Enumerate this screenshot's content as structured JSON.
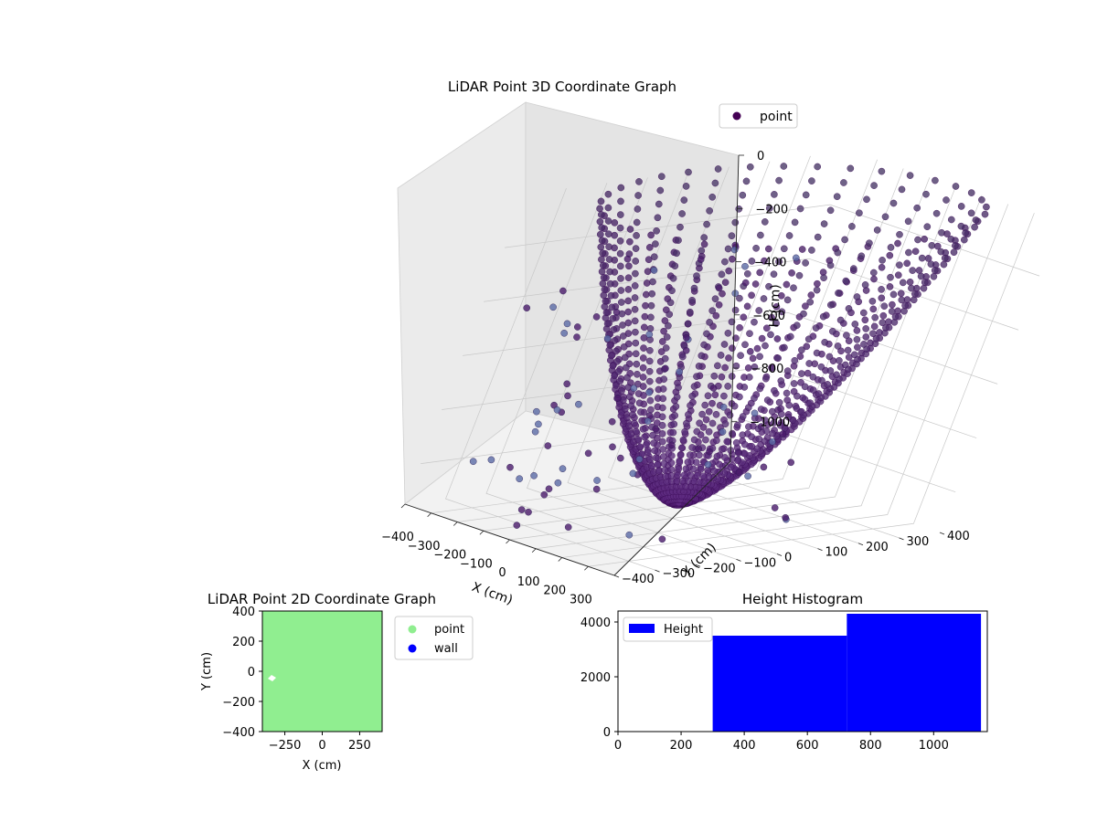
{
  "chart_data": [
    {
      "type": "scatter",
      "projection": "3d",
      "title": "LiDAR Point 3D Coordinate Graph",
      "xlabel": "X (cm)",
      "ylabel": "Y (cm)",
      "zlabel": "H (cm)",
      "xlim": [
        -400,
        400
      ],
      "ylim": [
        -400,
        400
      ],
      "zlim": [
        -1150,
        0
      ],
      "x_ticks": [
        "−400",
        "−300",
        "−200",
        "−100",
        "0",
        "100",
        "200",
        "300"
      ],
      "y_ticks": [
        "−400",
        "−300",
        "−200",
        "−100",
        "0",
        "100",
        "200",
        "300",
        "400"
      ],
      "z_ticks": [
        "0",
        "−200",
        "−400",
        "−600",
        "−800",
        "−1000"
      ],
      "colormap": "viridis (dark purple to slate blue)",
      "series": [
        {
          "name": "point",
          "color": "#440154",
          "shape": "inverted dome: concentric rings of points on a bowl surface, spokes converging toward the bottom center near H ≈ −1100, rim reaching H ≈ 0 at radius ≈ 400",
          "ring_count": 36,
          "rows_per_ring": 36,
          "outliers": "scattered points around the rim and below the bowl"
        }
      ],
      "legend": {
        "entries": [
          "point"
        ],
        "position": "upper-right"
      },
      "grid": true
    },
    {
      "type": "scatter",
      "title": "LiDAR Point 2D Coordinate Graph",
      "xlabel": "X (cm)",
      "ylabel": "Y (cm)",
      "xlim": [
        -400,
        400
      ],
      "ylim": [
        -400,
        400
      ],
      "x_ticks": [
        "−250",
        "0",
        "250"
      ],
      "y_ticks": [
        "400",
        "200",
        "0",
        "−200",
        "−400"
      ],
      "series": [
        {
          "name": "point",
          "color": "#90ee90",
          "coverage": "fills the entire plot area"
        },
        {
          "name": "wall",
          "color": "#0000ff"
        }
      ],
      "gap": {
        "x": -330,
        "y": -40,
        "color": "#ffffff"
      },
      "legend": {
        "entries": [
          "point",
          "wall"
        ],
        "position": "outside-right"
      },
      "grid": false
    },
    {
      "type": "bar",
      "title": "Height Histogram",
      "xlim": [
        0,
        1170
      ],
      "ylim": [
        0,
        4400
      ],
      "x_ticks": [
        "0",
        "200",
        "400",
        "600",
        "800",
        "1000"
      ],
      "y_ticks": [
        "0",
        "2000",
        "4000"
      ],
      "bins": [
        {
          "x0": 300,
          "x1": 725,
          "value": 3500
        },
        {
          "x0": 725,
          "x1": 1150,
          "value": 4300
        }
      ],
      "series": [
        {
          "name": "Height",
          "color": "#0000ff"
        }
      ],
      "legend": {
        "entries": [
          "Height"
        ],
        "position": "upper-left"
      },
      "grid": false
    }
  ]
}
